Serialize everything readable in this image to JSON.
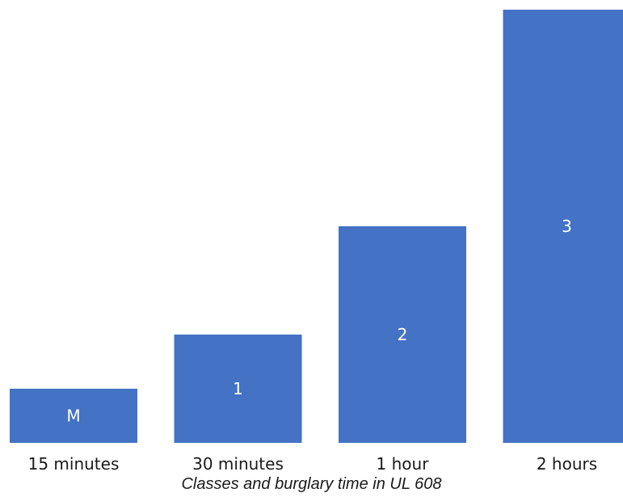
{
  "chart_data": {
    "type": "bar",
    "categories": [
      "15 minutes",
      "30 minutes",
      "1 hour",
      "2 hours"
    ],
    "values": [
      15,
      30,
      60,
      120
    ],
    "bar_labels": [
      "M",
      "1",
      "2",
      "3"
    ],
    "ylim": [
      0,
      120
    ],
    "grid": false,
    "legend": "none",
    "bar_color": "#4472C4",
    "caption": "Classes and burglary time in UL 608"
  }
}
